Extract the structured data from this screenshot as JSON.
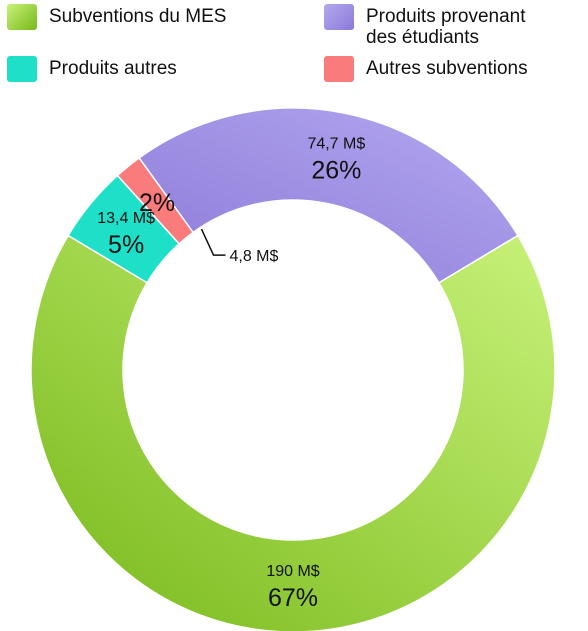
{
  "chart_data": {
    "type": "pie",
    "title": "",
    "donut": true,
    "legend_position": "top",
    "start_series": "Subventions du MES",
    "series": [
      {
        "name": "Subventions du MES",
        "value": 190,
        "value_label": "190 M$",
        "percent_label": "67%",
        "color": "#78b81a",
        "color_light": "#c8f27a"
      },
      {
        "name": "Produits autres",
        "value": 13.4,
        "value_label": "13,4 M$",
        "percent_label": "5%",
        "color": "#1ee0c8",
        "color_light": "#1ee0c8"
      },
      {
        "name": "Autres subventions",
        "value": 4.8,
        "value_label": "4,8 M$",
        "percent_label": "2%",
        "color": "#fa7b7b",
        "color_light": "#fa7b7b"
      },
      {
        "name": "Produits provenant\ndes étudiants",
        "value": 74.7,
        "value_label": "74,7 M$",
        "percent_label": "26%",
        "color": "#8c7ad8",
        "color_light": "#b4a8f0"
      }
    ],
    "legend_order": [
      0,
      3,
      1,
      2
    ]
  }
}
